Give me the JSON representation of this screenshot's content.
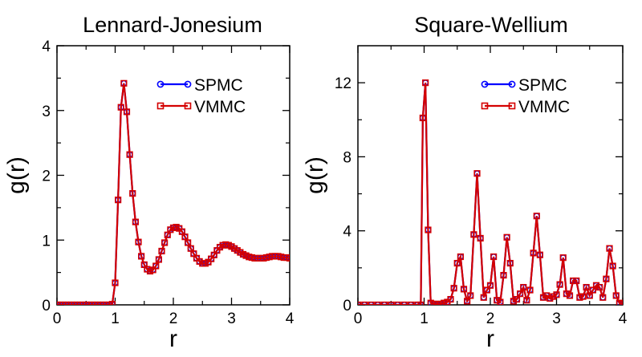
{
  "chart_data": [
    {
      "type": "line",
      "title": "Lennard-Jonesium",
      "xlabel": "r",
      "ylabel": "g(r)",
      "xlim": [
        0,
        4
      ],
      "ylim": [
        0,
        4
      ],
      "xticks": [
        0,
        1,
        2,
        3,
        4
      ],
      "yticks": [
        0,
        1,
        2,
        3,
        4
      ],
      "legend_position": "top-right",
      "series": [
        {
          "name": "SPMC",
          "color": "#0000ff",
          "marker": "circle",
          "x": [
            0.0,
            0.05,
            0.1,
            0.15,
            0.2,
            0.25,
            0.3,
            0.35,
            0.4,
            0.45,
            0.5,
            0.55,
            0.6,
            0.65,
            0.7,
            0.75,
            0.8,
            0.85,
            0.9,
            0.95,
            1.0,
            1.05,
            1.1,
            1.15,
            1.2,
            1.25,
            1.3,
            1.35,
            1.4,
            1.45,
            1.5,
            1.55,
            1.6,
            1.65,
            1.7,
            1.75,
            1.8,
            1.85,
            1.9,
            1.95,
            2.0,
            2.05,
            2.1,
            2.15,
            2.2,
            2.25,
            2.3,
            2.35,
            2.4,
            2.45,
            2.5,
            2.55,
            2.6,
            2.65,
            2.7,
            2.75,
            2.8,
            2.85,
            2.9,
            2.95,
            3.0,
            3.05,
            3.1,
            3.15,
            3.2,
            3.25,
            3.3,
            3.35,
            3.4,
            3.45,
            3.5,
            3.55,
            3.6,
            3.65,
            3.7,
            3.75,
            3.8,
            3.85,
            3.9,
            3.95,
            4.0
          ],
          "y": [
            0,
            0,
            0,
            0,
            0,
            0,
            0,
            0,
            0,
            0,
            0,
            0,
            0,
            0,
            0,
            0,
            0,
            0,
            0,
            0.01,
            0.34,
            1.62,
            3.05,
            3.42,
            2.98,
            2.32,
            1.72,
            1.28,
            0.97,
            0.75,
            0.62,
            0.55,
            0.52,
            0.54,
            0.6,
            0.7,
            0.83,
            0.96,
            1.08,
            1.16,
            1.19,
            1.2,
            1.18,
            1.13,
            1.05,
            0.96,
            0.87,
            0.79,
            0.72,
            0.67,
            0.64,
            0.64,
            0.66,
            0.71,
            0.77,
            0.84,
            0.89,
            0.92,
            0.93,
            0.92,
            0.9,
            0.87,
            0.84,
            0.81,
            0.78,
            0.76,
            0.74,
            0.73,
            0.72,
            0.72,
            0.72,
            0.72,
            0.73,
            0.74,
            0.75,
            0.75,
            0.75,
            0.74,
            0.73,
            0.73,
            0.72
          ]
        },
        {
          "name": "VMMC",
          "color": "#d40000",
          "marker": "square",
          "x": [
            0.0,
            0.05,
            0.1,
            0.15,
            0.2,
            0.25,
            0.3,
            0.35,
            0.4,
            0.45,
            0.5,
            0.55,
            0.6,
            0.65,
            0.7,
            0.75,
            0.8,
            0.85,
            0.9,
            0.95,
            1.0,
            1.05,
            1.1,
            1.15,
            1.2,
            1.25,
            1.3,
            1.35,
            1.4,
            1.45,
            1.5,
            1.55,
            1.6,
            1.65,
            1.7,
            1.75,
            1.8,
            1.85,
            1.9,
            1.95,
            2.0,
            2.05,
            2.1,
            2.15,
            2.2,
            2.25,
            2.3,
            2.35,
            2.4,
            2.45,
            2.5,
            2.55,
            2.6,
            2.65,
            2.7,
            2.75,
            2.8,
            2.85,
            2.9,
            2.95,
            3.0,
            3.05,
            3.1,
            3.15,
            3.2,
            3.25,
            3.3,
            3.35,
            3.4,
            3.45,
            3.5,
            3.55,
            3.6,
            3.65,
            3.7,
            3.75,
            3.8,
            3.85,
            3.9,
            3.95,
            4.0
          ],
          "y": [
            0,
            0,
            0,
            0,
            0,
            0,
            0,
            0,
            0,
            0,
            0,
            0,
            0,
            0,
            0,
            0,
            0,
            0,
            0,
            0.01,
            0.34,
            1.62,
            3.05,
            3.42,
            2.98,
            2.32,
            1.72,
            1.28,
            0.97,
            0.75,
            0.62,
            0.55,
            0.52,
            0.54,
            0.6,
            0.7,
            0.83,
            0.96,
            1.08,
            1.16,
            1.19,
            1.2,
            1.18,
            1.13,
            1.05,
            0.96,
            0.87,
            0.79,
            0.72,
            0.67,
            0.64,
            0.64,
            0.66,
            0.71,
            0.77,
            0.84,
            0.89,
            0.92,
            0.93,
            0.92,
            0.9,
            0.87,
            0.84,
            0.81,
            0.78,
            0.76,
            0.74,
            0.73,
            0.72,
            0.72,
            0.72,
            0.72,
            0.73,
            0.74,
            0.75,
            0.75,
            0.75,
            0.74,
            0.73,
            0.73,
            0.72
          ]
        }
      ]
    },
    {
      "type": "line",
      "title": "Square-Wellium",
      "xlabel": "r",
      "ylabel": "g(r)",
      "xlim": [
        0,
        4
      ],
      "ylim": [
        0,
        14
      ],
      "xticks": [
        0,
        1,
        2,
        3,
        4
      ],
      "yticks": [
        0,
        4,
        8,
        12
      ],
      "legend_position": "top-right",
      "series": [
        {
          "name": "SPMC",
          "color": "#0000ff",
          "marker": "circle",
          "x": [
            0.0,
            0.1,
            0.2,
            0.3,
            0.4,
            0.5,
            0.6,
            0.7,
            0.8,
            0.9,
            0.95,
            0.98,
            1.02,
            1.06,
            1.1,
            1.15,
            1.2,
            1.25,
            1.3,
            1.35,
            1.4,
            1.45,
            1.5,
            1.55,
            1.6,
            1.65,
            1.7,
            1.75,
            1.8,
            1.85,
            1.9,
            1.95,
            2.0,
            2.05,
            2.1,
            2.15,
            2.2,
            2.25,
            2.3,
            2.35,
            2.4,
            2.45,
            2.5,
            2.55,
            2.6,
            2.65,
            2.7,
            2.75,
            2.8,
            2.85,
            2.9,
            2.95,
            3.0,
            3.05,
            3.1,
            3.15,
            3.2,
            3.25,
            3.3,
            3.35,
            3.4,
            3.45,
            3.5,
            3.55,
            3.6,
            3.65,
            3.7,
            3.75,
            3.8,
            3.85,
            3.9,
            3.95,
            4.0
          ],
          "y": [
            0,
            0,
            0,
            0,
            0,
            0,
            0,
            0,
            0,
            0,
            0,
            10.1,
            12.0,
            4.05,
            0.1,
            0.05,
            0.03,
            0.05,
            0.1,
            0.15,
            0.3,
            0.9,
            2.25,
            2.6,
            0.85,
            0.2,
            0.5,
            3.8,
            7.1,
            3.6,
            0.4,
            0.8,
            1.05,
            2.6,
            0.25,
            0.15,
            1.6,
            3.65,
            2.25,
            0.2,
            0.3,
            0.6,
            0.95,
            0.25,
            0.8,
            2.8,
            4.8,
            2.7,
            0.4,
            0.5,
            0.35,
            0.45,
            0.55,
            1.1,
            2.55,
            0.6,
            0.5,
            1.3,
            1.3,
            0.4,
            0.45,
            0.95,
            0.5,
            0.8,
            1.05,
            0.95,
            0.4,
            1.4,
            3.05,
            2.1,
            0.5,
            0.1,
            0.05
          ]
        },
        {
          "name": "VMMC",
          "color": "#d40000",
          "marker": "square",
          "x": [
            0.0,
            0.1,
            0.2,
            0.3,
            0.4,
            0.5,
            0.6,
            0.7,
            0.8,
            0.9,
            0.95,
            0.98,
            1.02,
            1.06,
            1.1,
            1.15,
            1.2,
            1.25,
            1.3,
            1.35,
            1.4,
            1.45,
            1.5,
            1.55,
            1.6,
            1.65,
            1.7,
            1.75,
            1.8,
            1.85,
            1.9,
            1.95,
            2.0,
            2.05,
            2.1,
            2.15,
            2.2,
            2.25,
            2.3,
            2.35,
            2.4,
            2.45,
            2.5,
            2.55,
            2.6,
            2.65,
            2.7,
            2.75,
            2.8,
            2.85,
            2.9,
            2.95,
            3.0,
            3.05,
            3.1,
            3.15,
            3.2,
            3.25,
            3.3,
            3.35,
            3.4,
            3.45,
            3.5,
            3.55,
            3.6,
            3.65,
            3.7,
            3.75,
            3.8,
            3.85,
            3.9,
            3.95,
            4.0
          ],
          "y": [
            0,
            0,
            0,
            0,
            0,
            0,
            0,
            0,
            0,
            0,
            0,
            10.1,
            12.0,
            4.05,
            0.1,
            0.05,
            0.03,
            0.05,
            0.1,
            0.15,
            0.3,
            0.9,
            2.25,
            2.6,
            0.85,
            0.2,
            0.5,
            3.8,
            7.1,
            3.6,
            0.4,
            0.8,
            1.05,
            2.6,
            0.25,
            0.15,
            1.6,
            3.65,
            2.25,
            0.2,
            0.3,
            0.6,
            0.95,
            0.25,
            0.8,
            2.8,
            4.8,
            2.7,
            0.4,
            0.5,
            0.35,
            0.45,
            0.55,
            1.1,
            2.55,
            0.6,
            0.5,
            1.3,
            1.3,
            0.4,
            0.45,
            0.95,
            0.5,
            0.8,
            1.05,
            0.95,
            0.4,
            1.4,
            3.05,
            2.1,
            0.5,
            0.1,
            0.05
          ]
        }
      ]
    }
  ]
}
